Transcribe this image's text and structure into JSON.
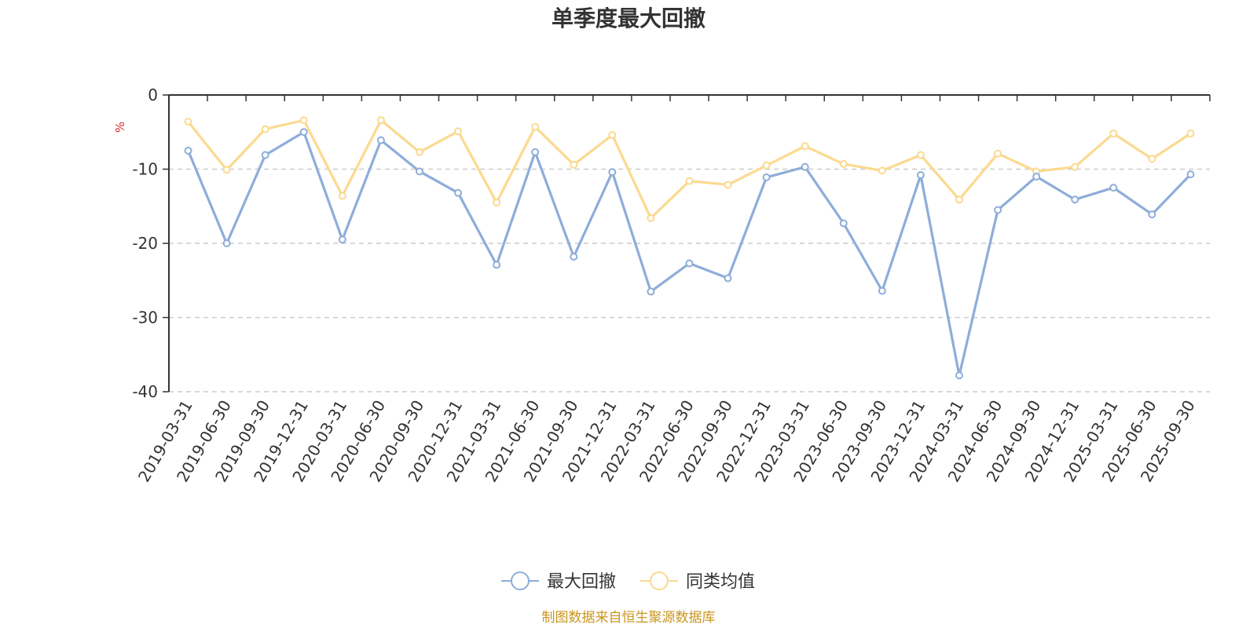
{
  "chart_data": {
    "type": "line",
    "title": "单季度最大回撤",
    "ylabel": "%",
    "xlabel": "",
    "ylim": [
      -40,
      0
    ],
    "y_ticks": [
      0,
      -10,
      -20,
      -30,
      -40
    ],
    "grid": true,
    "legend_position": "bottom",
    "categories": [
      "2019-03-31",
      "2019-06-30",
      "2019-09-30",
      "2019-12-31",
      "2020-03-31",
      "2020-06-30",
      "2020-09-30",
      "2020-12-31",
      "2021-03-31",
      "2021-06-30",
      "2021-09-30",
      "2021-12-31",
      "2022-03-31",
      "2022-06-30",
      "2022-09-30",
      "2022-12-31",
      "2023-03-31",
      "2023-06-30",
      "2023-09-30",
      "2023-12-31",
      "2024-03-31",
      "2024-06-30",
      "2024-09-30",
      "2024-12-31",
      "2025-03-31",
      "2025-06-30",
      "2025-09-30"
    ],
    "series": [
      {
        "name": "最大回撤",
        "color": "#8eadd9",
        "values": [
          -7.5,
          -20.0,
          -8.1,
          -5.0,
          -19.5,
          -6.1,
          -10.3,
          -13.2,
          -22.9,
          -7.7,
          -21.8,
          -10.4,
          -26.5,
          -22.7,
          -24.7,
          -11.1,
          -9.7,
          -17.3,
          -26.4,
          -10.8,
          -37.8,
          -15.5,
          -11.0,
          -14.1,
          -12.5,
          -16.1,
          -10.7
        ]
      },
      {
        "name": "同类均值",
        "color": "#fbd98f",
        "values": [
          -3.6,
          -10.1,
          -4.6,
          -3.4,
          -13.6,
          -3.4,
          -7.7,
          -4.9,
          -14.5,
          -4.3,
          -9.4,
          -5.4,
          -16.6,
          -11.6,
          -12.1,
          -9.5,
          -6.9,
          -9.3,
          -10.2,
          -8.1,
          -14.1,
          -7.9,
          -10.3,
          -9.7,
          -5.2,
          -8.6,
          -5.2
        ]
      }
    ]
  },
  "footer": {
    "source_text": "制图数据来自恒生聚源数据库",
    "source_color": "#c8961e"
  },
  "unit_color": "#e0242b"
}
